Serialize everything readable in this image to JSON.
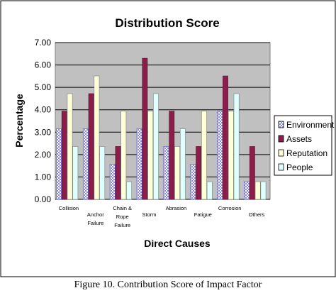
{
  "chart_data": {
    "type": "bar",
    "title": "Distribution Score",
    "xlabel": "Direct Causes",
    "ylabel": "Percentage",
    "ylim": [
      0,
      7
    ],
    "yticks": [
      "0.00",
      "1.00",
      "2.00",
      "3.00",
      "4.00",
      "5.00",
      "6.00",
      "7.00"
    ],
    "grid": true,
    "legend_position": "right",
    "categories": [
      [
        "Collision"
      ],
      [
        "Anchor",
        "Failure"
      ],
      [
        "Chain &",
        "Rope",
        "Failure"
      ],
      [
        "Storm"
      ],
      [
        "Abrasion"
      ],
      [
        "Fatigue"
      ],
      [
        "Corrosion"
      ],
      [
        "Others"
      ]
    ],
    "series": [
      {
        "name": "Environment",
        "color": "#9a9ae8",
        "pattern": "dots",
        "values": [
          3.15,
          3.15,
          1.57,
          3.15,
          2.36,
          1.57,
          3.94,
          0.79
        ]
      },
      {
        "name": "Assets",
        "color": "#8b1d4a",
        "pattern": "solid",
        "values": [
          3.94,
          4.72,
          2.36,
          6.3,
          3.94,
          2.36,
          5.51,
          2.36
        ]
      },
      {
        "name": "Reputation",
        "color": "#ffffd8",
        "pattern": "solid",
        "values": [
          4.72,
          5.51,
          3.94,
          3.94,
          2.36,
          3.94,
          3.94,
          0.79
        ]
      },
      {
        "name": "People",
        "color": "#e0ffff",
        "pattern": "solid",
        "values": [
          2.36,
          2.36,
          0.79,
          4.72,
          3.15,
          0.79,
          4.72,
          0.79
        ]
      }
    ],
    "plot_bg": "#c0c0c0"
  },
  "caption": "Figure 10. Contribution Score of Impact Factor"
}
